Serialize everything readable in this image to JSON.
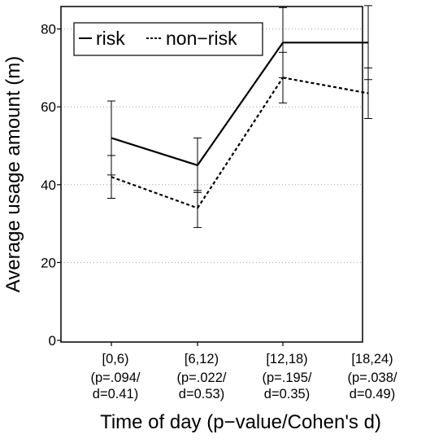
{
  "chart_data": {
    "type": "line",
    "categories": [
      "[0,6)",
      "[6,12)",
      "[12,18)",
      "[18,24)"
    ],
    "category_stats": [
      [
        "(p=.094/",
        "d=0.41)"
      ],
      [
        "(p=.022/",
        "d=0.53)"
      ],
      [
        "(p=.195/",
        "d=0.35)"
      ],
      [
        "(p=.038/",
        "d=0.49)"
      ]
    ],
    "series": [
      {
        "name": "risk",
        "line_style": "solid",
        "values": [
          52.0,
          45.0,
          76.5,
          76.5
        ],
        "error_low": [
          42.5,
          38.0,
          67.5,
          67.0
        ],
        "error_high": [
          61.5,
          52.0,
          85.5,
          86.0
        ]
      },
      {
        "name": "non-risk",
        "line_style": "dashed",
        "values": [
          42.0,
          34.0,
          67.5,
          63.5
        ],
        "error_low": [
          36.5,
          29.0,
          61.0,
          57.0
        ],
        "error_high": [
          47.5,
          38.5,
          74.0,
          70.0
        ]
      }
    ],
    "yticks": [
      0,
      20,
      40,
      60,
      80
    ],
    "ylim": [
      0,
      86
    ],
    "xlabel": "Time of day (p−value/Cohen's d)",
    "ylabel": "Average usage amount (m)",
    "legend": {
      "position": "top-left",
      "entries": [
        "risk",
        "non−risk"
      ]
    },
    "grid": "horizontal-dotted"
  }
}
